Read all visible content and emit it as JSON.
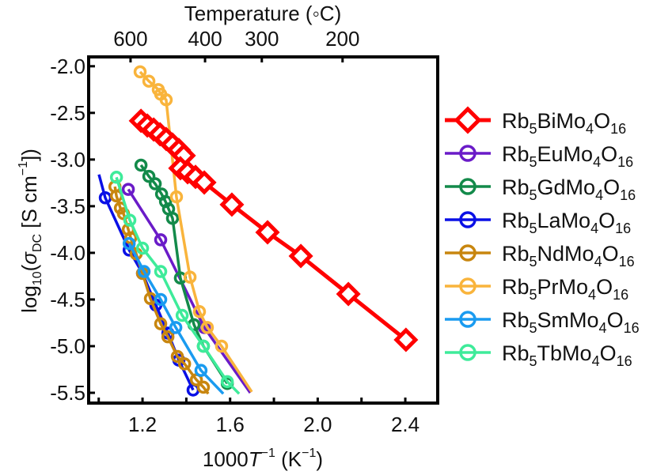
{
  "chart_data": {
    "type": "line",
    "title": "",
    "xlabel": "1000T⁻¹ (K⁻¹)",
    "xlabel_parts": {
      "prefix": "1000",
      "var": "T",
      "sup": "−1",
      "unit_open": " (K",
      "unit_sup": "−1",
      "unit_close": ")"
    },
    "ylabel": "log10(σDC [S cm⁻¹])",
    "ylabel_parts": {
      "log": "log",
      "log_sub": "10",
      "open": "(",
      "sigma": "σ",
      "sigma_sub": "DC",
      "unit": " [S cm",
      "unit_sup": "−1",
      "close": "])"
    },
    "top_xlabel": "Temperature (◦C)",
    "xlim": [
      0.954,
      2.548
    ],
    "ylim": [
      -5.61,
      -1.9
    ],
    "x_ticks_labeled": [
      1.2,
      1.6,
      2.0,
      2.4
    ],
    "x_tick_labels": [
      "1.2",
      "1.6",
      "2.0",
      "2.4"
    ],
    "x_ticks_minor": [
      1.0,
      1.4,
      1.8,
      2.2
    ],
    "y_ticks": [
      -2.0,
      -2.5,
      -3.0,
      -3.5,
      -4.0,
      -4.5,
      -5.0,
      -5.5
    ],
    "y_tick_labels": [
      "-2.0",
      "-2.5",
      "-3.0",
      "-3.5",
      "-4.0",
      "-4.5",
      "-5.0",
      "-5.5"
    ],
    "top_ticks_celsius": [
      600,
      400,
      300,
      200
    ],
    "top_tick_labels": [
      "600",
      "400",
      "300",
      "200"
    ],
    "grid": false,
    "legend_position": "right-outside",
    "series": [
      {
        "name": "Rb5BiMo4O16",
        "formula": {
          "a": "Rb",
          "n1": "5",
          "b": "BiMo",
          "n2": "4",
          "c": "O",
          "n3": "16"
        },
        "color": "#ff0000",
        "marker": "diamond",
        "points": [
          [
            1.193,
            -2.585
          ],
          [
            1.222,
            -2.636
          ],
          [
            1.251,
            -2.678
          ],
          [
            1.28,
            -2.729
          ],
          [
            1.308,
            -2.78
          ],
          [
            1.337,
            -2.839
          ],
          [
            1.366,
            -2.898
          ],
          [
            1.388,
            -2.958
          ],
          [
            1.373,
            -3.093
          ],
          [
            1.406,
            -3.136
          ],
          [
            1.442,
            -3.186
          ],
          [
            1.482,
            -3.246
          ],
          [
            1.608,
            -3.483
          ],
          [
            1.771,
            -3.78
          ],
          [
            1.923,
            -4.034
          ],
          [
            2.14,
            -4.441
          ],
          [
            2.403,
            -4.932
          ]
        ]
      },
      {
        "name": "Rb5EuMo4O16",
        "formula": {
          "a": "Rb",
          "n1": "5",
          "b": "EuMo",
          "n2": "4",
          "c": "O",
          "n3": "16"
        },
        "color": "#6a1bc8",
        "marker": "circle",
        "points": [
          [
            1.135,
            -3.32
          ],
          [
            1.283,
            -3.86
          ],
          [
            1.482,
            -4.8
          ]
        ],
        "line_end": [
          1.692,
          -5.5
        ]
      },
      {
        "name": "Rb5GdMo4O16",
        "formula": {
          "a": "Rb",
          "n1": "5",
          "b": "GdMo",
          "n2": "4",
          "c": "O",
          "n3": "16"
        },
        "color": "#138a4a",
        "marker": "circle",
        "points": [
          [
            1.193,
            -3.06
          ],
          [
            1.229,
            -3.18
          ],
          [
            1.258,
            -3.26
          ],
          [
            1.287,
            -3.37
          ],
          [
            1.305,
            -3.45
          ],
          [
            1.319,
            -3.53
          ],
          [
            1.337,
            -3.63
          ],
          [
            1.373,
            -4.27
          ],
          [
            1.435,
            -4.77
          ],
          [
            1.478,
            -5.0
          ],
          [
            1.587,
            -5.4
          ]
        ]
      },
      {
        "name": "Rb5LaMo4O16",
        "formula": {
          "a": "Rb",
          "n1": "5",
          "b": "LaMo",
          "n2": "4",
          "c": "O",
          "n3": "16"
        },
        "color": "#0a10e6",
        "marker": "circle",
        "points": [
          [
            1.03,
            -3.41
          ],
          [
            1.139,
            -3.97
          ],
          [
            1.2,
            -4.22
          ],
          [
            1.261,
            -4.56
          ],
          [
            1.316,
            -4.86
          ],
          [
            1.366,
            -5.15
          ],
          [
            1.431,
            -5.47
          ]
        ],
        "line_start": [
          1.001,
          -3.16
        ]
      },
      {
        "name": "Rb5NdMo4O16",
        "formula": {
          "a": "Rb",
          "n1": "5",
          "b": "NdMo",
          "n2": "4",
          "c": "O",
          "n3": "16"
        },
        "color": "#c8860f",
        "marker": "circle",
        "points": [
          [
            1.074,
            -3.29
          ],
          [
            1.081,
            -3.39
          ],
          [
            1.099,
            -3.52
          ],
          [
            1.113,
            -3.58
          ],
          [
            1.135,
            -3.75
          ],
          [
            1.146,
            -3.84
          ],
          [
            1.171,
            -4.01
          ],
          [
            1.2,
            -4.22
          ],
          [
            1.236,
            -4.49
          ],
          [
            1.283,
            -4.76
          ],
          [
            1.316,
            -4.9
          ],
          [
            1.359,
            -5.11
          ],
          [
            1.392,
            -5.19
          ],
          [
            1.446,
            -5.36
          ],
          [
            1.478,
            -5.44
          ]
        ],
        "line_end": [
          1.5,
          -5.51
        ]
      },
      {
        "name": "Rb5PrMo4O16",
        "formula": {
          "a": "Rb",
          "n1": "5",
          "b": "PrMo",
          "n2": "4",
          "c": "O",
          "n3": "16"
        },
        "color": "#f9b43c",
        "marker": "circle",
        "points": [
          [
            1.189,
            -2.06
          ],
          [
            1.229,
            -2.16
          ],
          [
            1.272,
            -2.25
          ],
          [
            1.283,
            -2.3
          ],
          [
            1.308,
            -2.36
          ],
          [
            1.355,
            -3.4
          ],
          [
            1.417,
            -4.26
          ],
          [
            1.46,
            -4.63
          ],
          [
            1.496,
            -4.8
          ],
          [
            1.561,
            -5.0
          ]
        ],
        "line_end": [
          1.699,
          -5.49
        ]
      },
      {
        "name": "Rb5SmMo4O16",
        "formula": {
          "a": "Rb",
          "n1": "5",
          "b": "SmMo",
          "n2": "4",
          "c": "O",
          "n3": "16"
        },
        "color": "#1a9bf0",
        "marker": "circle",
        "points": [
          [
            1.139,
            -3.9
          ],
          [
            1.207,
            -4.2
          ],
          [
            1.283,
            -4.5
          ],
          [
            1.352,
            -4.8
          ],
          [
            1.467,
            -5.26
          ]
        ],
        "line_end": [
          1.569,
          -5.51
        ]
      },
      {
        "name": "Rb5TbMo4O16",
        "formula": {
          "a": "Rb",
          "n1": "5",
          "b": "TbMo",
          "n2": "4",
          "c": "O",
          "n3": "16"
        },
        "color": "#3eeb9a",
        "marker": "circle",
        "points": [
          [
            1.081,
            -3.19
          ],
          [
            1.142,
            -3.65
          ],
          [
            1.2,
            -3.95
          ],
          [
            1.283,
            -4.2
          ],
          [
            1.381,
            -4.67
          ],
          [
            1.478,
            -5.0
          ],
          [
            1.587,
            -5.38
          ]
        ],
        "line_end": [
          1.641,
          -5.51
        ]
      }
    ]
  }
}
